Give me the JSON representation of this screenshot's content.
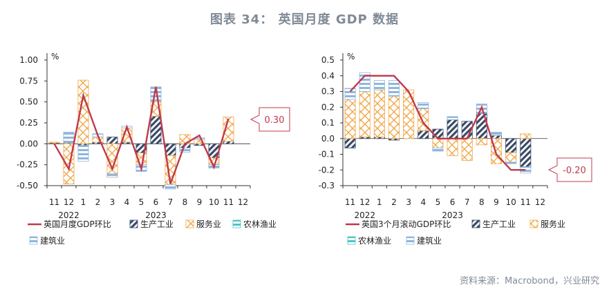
{
  "figure": {
    "title": "图表 34：  英国月度 GDP 数据",
    "source": "资料来源：Macrobond，兴业研究"
  },
  "colors": {
    "line": "#c0394b",
    "industry": "#3a4a66",
    "services": "#f0a84a",
    "agriculture": "#4fc4c8",
    "construction": "#8fb6dc"
  },
  "chart_data": [
    {
      "type": "bar",
      "stacked": true,
      "unit_label": "%",
      "categories": [
        "11",
        "12",
        "1",
        "2",
        "3",
        "4",
        "5",
        "6",
        "7",
        "8",
        "9",
        "10",
        "11",
        "12"
      ],
      "year_labels": [
        {
          "label": "2022",
          "at": "12"
        },
        {
          "label": "2023",
          "at": "6"
        }
      ],
      "ylim": [
        -0.5,
        1.0
      ],
      "yticks": [
        "1.00",
        "0.75",
        "0.50",
        "0.25",
        "0.00",
        "-0.25",
        "-0.50"
      ],
      "series": [
        {
          "name": "英国月度GDP环比",
          "kind": "line",
          "values": [
            0.0,
            -0.3,
            0.58,
            0.1,
            -0.3,
            0.2,
            -0.3,
            0.68,
            -0.48,
            0.0,
            0.1,
            -0.28,
            0.3,
            null
          ]
        },
        {
          "name": "生产工业",
          "kind": "bar",
          "values": [
            0.01,
            0.01,
            -0.02,
            0.02,
            0.08,
            0.02,
            -0.11,
            0.33,
            -0.14,
            -0.05,
            -0.02,
            -0.17,
            0.03,
            null
          ]
        },
        {
          "name": "服务业",
          "kind": "bar",
          "values": [
            0.01,
            -0.48,
            0.76,
            0.06,
            -0.36,
            0.17,
            -0.14,
            0.18,
            -0.35,
            0.11,
            0.05,
            -0.08,
            0.29,
            null
          ]
        },
        {
          "name": "农林渔业",
          "kind": "bar",
          "values": [
            0.0,
            0.0,
            0.0,
            0.0,
            0.0,
            0.0,
            0.0,
            0.0,
            0.0,
            0.0,
            0.0,
            0.0,
            0.0,
            null
          ]
        },
        {
          "name": "建筑业",
          "kind": "bar",
          "values": [
            0.0,
            0.13,
            -0.19,
            0.04,
            -0.04,
            0.02,
            -0.08,
            0.17,
            -0.05,
            -0.05,
            0.02,
            -0.04,
            0.0,
            null
          ]
        }
      ],
      "callout": "0.30",
      "legend": [
        "英国月度GDP环比",
        "生产工业",
        "服务业",
        "农林渔业",
        "建筑业"
      ]
    },
    {
      "type": "bar",
      "stacked": true,
      "unit_label": "%",
      "categories": [
        "11",
        "12",
        "1",
        "2",
        "3",
        "4",
        "5",
        "6",
        "7",
        "8",
        "9",
        "10",
        "11",
        "12"
      ],
      "year_labels": [
        {
          "label": "2022",
          "at": "12"
        },
        {
          "label": "2023",
          "at": "6"
        }
      ],
      "ylim": [
        -0.3,
        0.5
      ],
      "yticks": [
        "0.5",
        "0.4",
        "0.3",
        "0.2",
        "0.1",
        "0.0",
        "-0.1",
        "-0.2",
        "-0.3"
      ],
      "series": [
        {
          "name": "英国3个月滚动GDP环比",
          "kind": "line",
          "values": [
            0.3,
            0.4,
            0.4,
            0.4,
            0.3,
            0.1,
            0.0,
            0.0,
            0.0,
            0.2,
            -0.1,
            -0.2,
            -0.2,
            null
          ]
        },
        {
          "name": "生产工业",
          "kind": "bar",
          "values": [
            -0.06,
            0.01,
            0.01,
            -0.01,
            0.0,
            0.05,
            0.06,
            0.12,
            0.11,
            0.16,
            0.02,
            -0.09,
            -0.18,
            null
          ]
        },
        {
          "name": "服务业",
          "kind": "bar",
          "values": [
            0.25,
            0.29,
            0.3,
            0.27,
            0.31,
            0.14,
            -0.06,
            -0.11,
            -0.14,
            -0.04,
            -0.16,
            -0.06,
            0.03,
            null
          ]
        },
        {
          "name": "农林渔业",
          "kind": "bar",
          "values": [
            0.0,
            0.0,
            0.0,
            0.0,
            0.0,
            0.0,
            0.0,
            0.0,
            0.0,
            0.0,
            0.0,
            0.0,
            0.0,
            null
          ]
        },
        {
          "name": "建筑业",
          "kind": "bar",
          "values": [
            0.07,
            0.12,
            0.06,
            0.1,
            0.0,
            0.04,
            -0.02,
            0.02,
            0.0,
            0.06,
            0.02,
            -0.01,
            -0.04,
            null
          ]
        }
      ],
      "callout": "-0.20",
      "legend": [
        "英国3个月滚动GDP环比",
        "生产工业",
        "服务业",
        "农林渔业",
        "建筑业"
      ]
    }
  ]
}
